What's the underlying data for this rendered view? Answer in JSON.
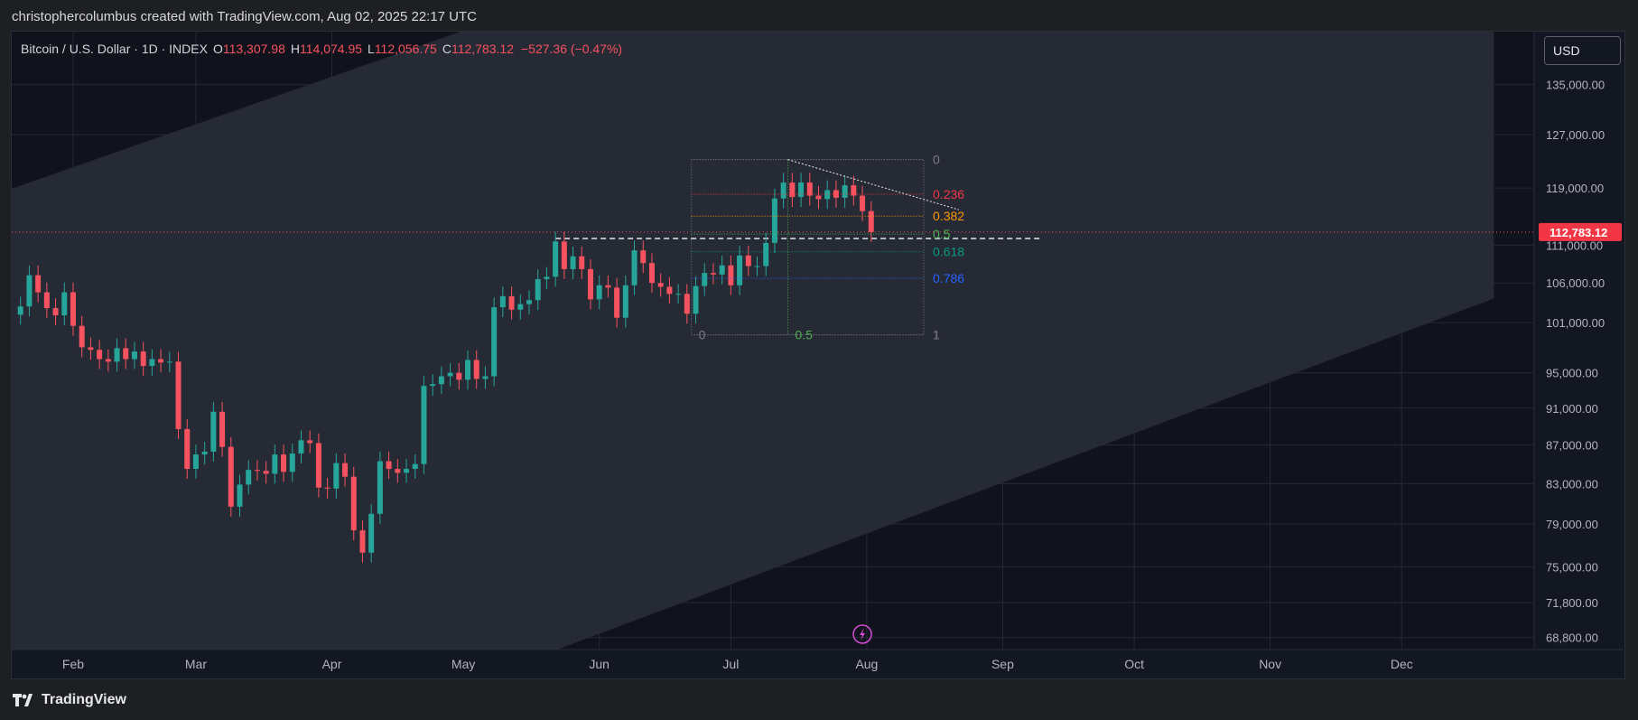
{
  "header": {
    "attribution": "christophercolumbus created with TradingView.com, Aug 02, 2025 22:17 UTC"
  },
  "footer": {
    "brand": "TradingView"
  },
  "currency_button": "USD",
  "legend": {
    "symbol": "Bitcoin / U.S. Dollar · 1D · INDEX",
    "open_label": "O",
    "open": "113,307.98",
    "high_label": "H",
    "high": "114,074.95",
    "low_label": "L",
    "low": "112,056.75",
    "close_label": "C",
    "close": "112,783.12",
    "change": "−527.36 (−0.47%)"
  },
  "colors": {
    "up": "#26a69a",
    "down": "#f7525f",
    "background": "#131722",
    "channel": "#262a35"
  },
  "chart_data": {
    "type": "candlestick",
    "y_scale": "log",
    "ylim": [
      67800,
      144000
    ],
    "y_ticks": [
      "135,000.00",
      "127,000.00",
      "119,000.00",
      "111,000.00",
      "106,000.00",
      "101,000.00",
      "95,000.00",
      "91,000.00",
      "87,000.00",
      "83,000.00",
      "79,000.00",
      "75,000.00",
      "71,800.00",
      "68,800.00"
    ],
    "x_ticks": [
      "Feb",
      "Mar",
      "Apr",
      "May",
      "Jun",
      "Jul",
      "Aug",
      "Sep",
      "Oct",
      "Nov",
      "Dec"
    ],
    "x_range": [
      "2025-01-18",
      "2025-12-31"
    ],
    "last_price_label": "112,783.12",
    "last_price": 112783.12,
    "closes": [
      [
        "2025-01-20",
        103000
      ],
      [
        "2025-01-22",
        107000
      ],
      [
        "2025-01-24",
        104800
      ],
      [
        "2025-01-26",
        102800
      ],
      [
        "2025-01-28",
        101900
      ],
      [
        "2025-01-30",
        104800
      ],
      [
        "2025-02-01",
        100600
      ],
      [
        "2025-02-03",
        98000
      ],
      [
        "2025-02-05",
        97700
      ],
      [
        "2025-02-07",
        96600
      ],
      [
        "2025-02-09",
        96300
      ],
      [
        "2025-02-11",
        97900
      ],
      [
        "2025-02-13",
        96600
      ],
      [
        "2025-02-15",
        97500
      ],
      [
        "2025-02-17",
        95800
      ],
      [
        "2025-02-19",
        96600
      ],
      [
        "2025-02-21",
        96200
      ],
      [
        "2025-02-23",
        96300
      ],
      [
        "2025-02-25",
        88700
      ],
      [
        "2025-02-27",
        84500
      ],
      [
        "2025-03-01",
        86000
      ],
      [
        "2025-03-03",
        86300
      ],
      [
        "2025-03-05",
        90600
      ],
      [
        "2025-03-07",
        86800
      ],
      [
        "2025-03-09",
        80700
      ],
      [
        "2025-03-11",
        82900
      ],
      [
        "2025-03-13",
        84400
      ],
      [
        "2025-03-15",
        84300
      ],
      [
        "2025-03-17",
        84000
      ],
      [
        "2025-03-19",
        86000
      ],
      [
        "2025-03-21",
        84200
      ],
      [
        "2025-03-23",
        86100
      ],
      [
        "2025-03-25",
        87500
      ],
      [
        "2025-03-27",
        87200
      ],
      [
        "2025-03-29",
        82600
      ],
      [
        "2025-03-31",
        82500
      ],
      [
        "2025-04-02",
        85100
      ],
      [
        "2025-04-04",
        83700
      ],
      [
        "2025-04-06",
        78400
      ],
      [
        "2025-04-08",
        76300
      ],
      [
        "2025-04-10",
        80000
      ],
      [
        "2025-04-12",
        85300
      ],
      [
        "2025-04-14",
        84500
      ],
      [
        "2025-04-16",
        84100
      ],
      [
        "2025-04-18",
        84500
      ],
      [
        "2025-04-20",
        85000
      ],
      [
        "2025-04-22",
        93500
      ],
      [
        "2025-04-24",
        93700
      ],
      [
        "2025-04-26",
        94600
      ],
      [
        "2025-04-28",
        95000
      ],
      [
        "2025-04-30",
        94200
      ],
      [
        "2025-05-02",
        96500
      ],
      [
        "2025-05-04",
        94300
      ],
      [
        "2025-05-06",
        94600
      ],
      [
        "2025-05-08",
        102900
      ],
      [
        "2025-05-10",
        104300
      ],
      [
        "2025-05-12",
        102600
      ],
      [
        "2025-05-14",
        103300
      ],
      [
        "2025-05-16",
        103800
      ],
      [
        "2025-05-18",
        106500
      ],
      [
        "2025-05-20",
        106800
      ],
      [
        "2025-05-22",
        111500
      ],
      [
        "2025-05-24",
        107800
      ],
      [
        "2025-05-26",
        109500
      ],
      [
        "2025-05-28",
        107800
      ],
      [
        "2025-05-30",
        103900
      ],
      [
        "2025-06-01",
        105700
      ],
      [
        "2025-06-03",
        105400
      ],
      [
        "2025-06-05",
        101600
      ],
      [
        "2025-06-07",
        105700
      ],
      [
        "2025-06-09",
        110300
      ],
      [
        "2025-06-11",
        108600
      ],
      [
        "2025-06-13",
        106000
      ],
      [
        "2025-06-15",
        105500
      ],
      [
        "2025-06-17",
        104600
      ],
      [
        "2025-06-19",
        104600
      ],
      [
        "2025-06-21",
        102100
      ],
      [
        "2025-06-23",
        105600
      ],
      [
        "2025-06-25",
        107300
      ],
      [
        "2025-06-27",
        107100
      ],
      [
        "2025-06-29",
        108300
      ],
      [
        "2025-07-01",
        105700
      ],
      [
        "2025-07-03",
        109600
      ],
      [
        "2025-07-05",
        108200
      ],
      [
        "2025-07-07",
        108200
      ],
      [
        "2025-07-09",
        111300
      ],
      [
        "2025-07-11",
        117500
      ],
      [
        "2025-07-13",
        119800
      ],
      [
        "2025-07-15",
        117700
      ],
      [
        "2025-07-17",
        119800
      ],
      [
        "2025-07-19",
        117900
      ],
      [
        "2025-07-21",
        117400
      ],
      [
        "2025-07-23",
        118700
      ],
      [
        "2025-07-25",
        117600
      ],
      [
        "2025-07-27",
        119400
      ],
      [
        "2025-07-29",
        117900
      ],
      [
        "2025-07-31",
        115700
      ],
      [
        "2025-08-02",
        112783.12
      ]
    ],
    "fibonacci": {
      "levels": [
        "0",
        "0.236",
        "0.382",
        "0.5",
        "0.618",
        "0.786",
        "1"
      ],
      "level_values": [
        123200,
        118100,
        115000,
        112500,
        110100,
        106600,
        99500
      ],
      "level_colors": [
        "#787b86",
        "#f23645",
        "#ff9800",
        "#4caf50",
        "#089981",
        "#2962ff",
        "#787b86"
      ],
      "time_labels": [
        "0",
        "0.5",
        "1"
      ]
    },
    "horizontal_line": 111900,
    "trendline": {
      "from": [
        "2025-07-14",
        123200
      ],
      "to": [
        "2025-08-22",
        115900
      ]
    }
  }
}
